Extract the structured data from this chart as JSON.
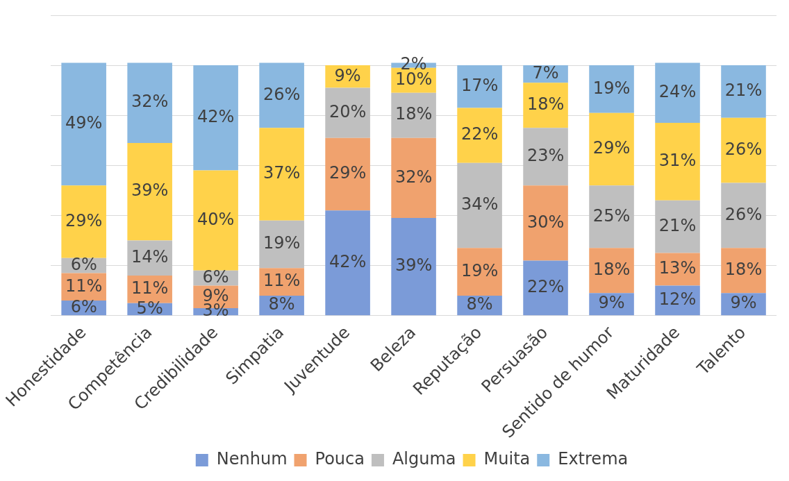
{
  "chart_data": {
    "type": "bar",
    "stacked": true,
    "categories": [
      "Honestidade",
      "Competência",
      "Credibilidade",
      "Simpatia",
      "Juventude",
      "Beleza",
      "Reputação",
      "Persuasão",
      "Sentido de humor",
      "Maturidade",
      "Talento"
    ],
    "series": [
      {
        "name": "Nenhum",
        "color": "#7b9bd8",
        "values": [
          6,
          5,
          3,
          8,
          42,
          39,
          8,
          22,
          9,
          12,
          9
        ],
        "value_labels": [
          "6%",
          "5%",
          "3%",
          "8%",
          "42%",
          "39%",
          "8%",
          "22%",
          "9%",
          "12%",
          "9%"
        ]
      },
      {
        "name": "Pouca",
        "color": "#f0a26e",
        "values": [
          11,
          11,
          9,
          11,
          29,
          32,
          19,
          30,
          18,
          13,
          18
        ],
        "value_labels": [
          "11%",
          "11%",
          "9%",
          "11%",
          "29%",
          "32%",
          "19%",
          "30%",
          "18%",
          "13%",
          "18%"
        ]
      },
      {
        "name": "Alguma",
        "color": "#bfbfbf",
        "values": [
          6,
          14,
          6,
          19,
          20,
          18,
          34,
          23,
          25,
          21,
          26
        ],
        "value_labels": [
          "6%",
          "14%",
          "6%",
          "19%",
          "20%",
          "18%",
          "34%",
          "23%",
          "25%",
          "21%",
          "26%"
        ]
      },
      {
        "name": "Muita",
        "color": "#ffd24a",
        "values": [
          29,
          39,
          40,
          37,
          9,
          10,
          22,
          18,
          29,
          31,
          26
        ],
        "value_labels": [
          "29%",
          "39%",
          "40%",
          "37%",
          "9%",
          "10%",
          "22%",
          "18%",
          "29%",
          "31%",
          "26%"
        ]
      },
      {
        "name": "Extrema",
        "color": "#8ab8e0",
        "values": [
          49,
          32,
          42,
          26,
          null,
          2,
          17,
          7,
          19,
          24,
          21
        ],
        "value_labels": [
          "49%",
          "32%",
          "42%",
          "26%",
          null,
          "2%",
          "17%",
          "7%",
          "19%",
          "24%",
          "21%"
        ]
      }
    ],
    "grid": "y",
    "tick_labels": "x",
    "legend": "bottom"
  }
}
